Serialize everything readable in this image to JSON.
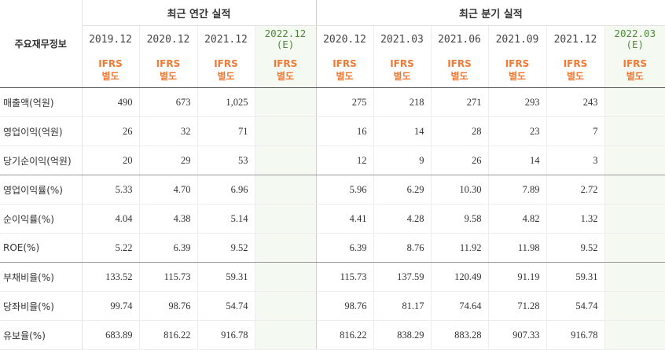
{
  "header": {
    "row_label": "주요재무정보",
    "annual_title": "최근 연간 실적",
    "quarter_title": "최근 분기 실적"
  },
  "annual_periods": [
    "2019.12",
    "2020.12",
    "2021.12"
  ],
  "annual_est": {
    "line1": "2022.12",
    "line2": "(E)"
  },
  "quarter_periods": [
    "2020.12",
    "2021.03",
    "2021.06",
    "2021.09",
    "2021.12"
  ],
  "quarter_est": {
    "line1": "2022.03",
    "line2": "(E)"
  },
  "ifrs": {
    "line1": "IFRS",
    "line2": "별도"
  },
  "rows": [
    {
      "label": "매출액(억원)",
      "annual": [
        "490",
        "673",
        "1,025"
      ],
      "quarter": [
        "275",
        "218",
        "271",
        "293",
        "243"
      ]
    },
    {
      "label": "영업이익(억원)",
      "annual": [
        "26",
        "32",
        "71"
      ],
      "quarter": [
        "16",
        "14",
        "28",
        "23",
        "7"
      ]
    },
    {
      "label": "당기순이익(억원)",
      "annual": [
        "20",
        "29",
        "53"
      ],
      "quarter": [
        "12",
        "9",
        "26",
        "14",
        "3"
      ]
    },
    {
      "label": "영업이익률(%)",
      "annual": [
        "5.33",
        "4.70",
        "6.96"
      ],
      "quarter": [
        "5.96",
        "6.29",
        "10.30",
        "7.89",
        "2.72"
      ]
    },
    {
      "label": "순이익률(%)",
      "annual": [
        "4.04",
        "4.38",
        "5.14"
      ],
      "quarter": [
        "4.41",
        "4.28",
        "9.58",
        "4.82",
        "1.32"
      ]
    },
    {
      "label": "ROE(%)",
      "annual": [
        "5.22",
        "6.39",
        "9.52"
      ],
      "quarter": [
        "6.39",
        "8.76",
        "11.92",
        "11.98",
        "9.52"
      ]
    },
    {
      "label": "부채비율(%)",
      "annual": [
        "133.52",
        "115.73",
        "59.31"
      ],
      "quarter": [
        "115.73",
        "137.59",
        "120.49",
        "91.19",
        "59.31"
      ]
    },
    {
      "label": "당좌비율(%)",
      "annual": [
        "99.74",
        "98.76",
        "54.74"
      ],
      "quarter": [
        "98.76",
        "81.17",
        "74.64",
        "71.28",
        "54.74"
      ]
    },
    {
      "label": "유보율(%)",
      "annual": [
        "683.89",
        "816.22",
        "916.78"
      ],
      "quarter": [
        "816.22",
        "838.29",
        "883.28",
        "907.33",
        "916.78"
      ]
    }
  ]
}
